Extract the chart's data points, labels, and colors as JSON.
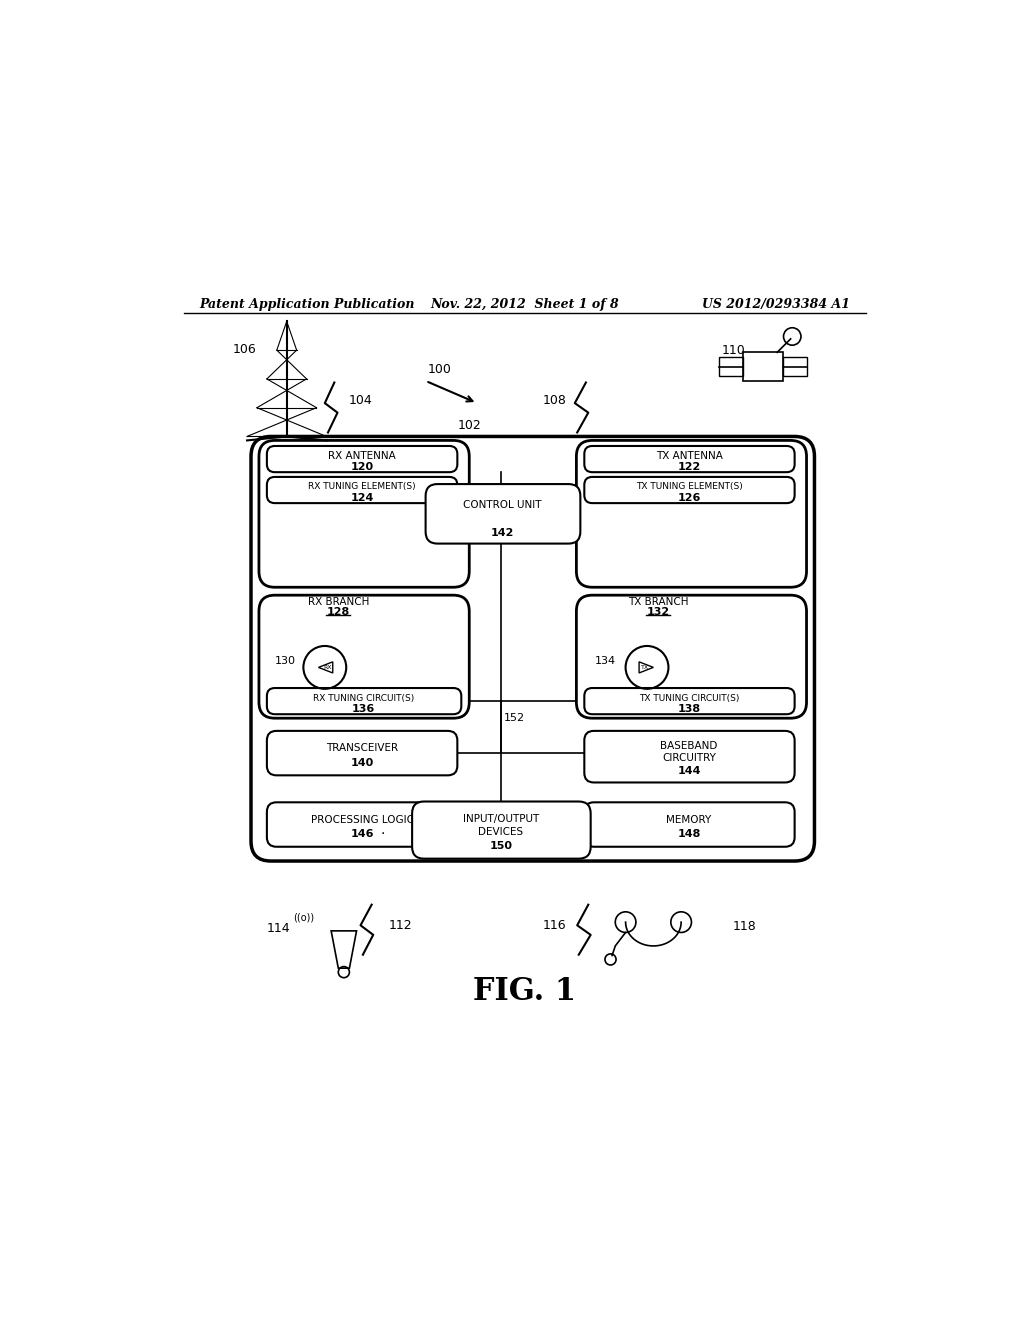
{
  "bg_color": "#ffffff",
  "header_left": "Patent Application Publication",
  "header_center": "Nov. 22, 2012  Sheet 1 of 8",
  "header_right": "US 2012/0293384 A1",
  "fig_label": "FIG. 1"
}
